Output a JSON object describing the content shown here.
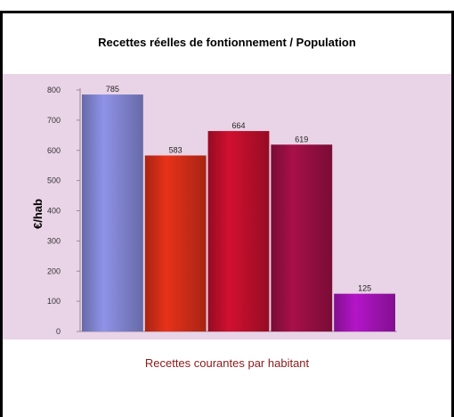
{
  "chart_data": {
    "type": "bar",
    "title": "Recettes réelles de fontionnement / Population",
    "ylabel": "€/hab",
    "xlabel": "",
    "caption": "Recettes courantes par habitant",
    "ylim": [
      0,
      800
    ],
    "yticks": [
      0,
      100,
      200,
      300,
      400,
      500,
      600,
      700,
      800
    ],
    "categories": [
      "",
      "",
      "",
      "",
      ""
    ],
    "values": [
      785,
      583,
      664,
      619,
      125
    ],
    "colors": [
      "#8f93e8",
      "#e8321a",
      "#d11030",
      "#a8104a",
      "#b415c8"
    ],
    "grid": false,
    "legend": "none",
    "background": "#e9d3e6"
  }
}
